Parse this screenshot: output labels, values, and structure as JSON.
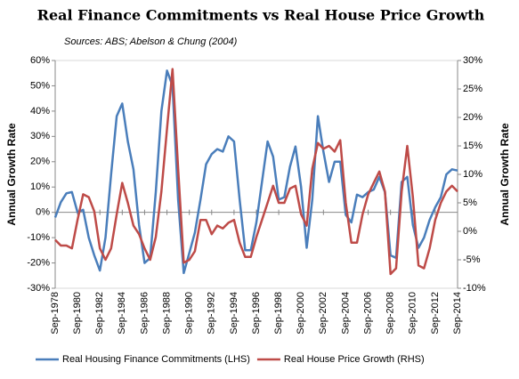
{
  "chart_data": {
    "type": "line",
    "title": "Real Finance Commitments vs Real House Price Growth",
    "subtitle": "Sources: ABS; Abelson & Chung (2004)",
    "y_label": "Annual Growth Rate",
    "y2_label": "Annual Growth Rate",
    "x": [
      1978.75,
      1979.25,
      1979.75,
      1980.25,
      1980.75,
      1981.25,
      1981.75,
      1982.25,
      1982.75,
      1983.25,
      1983.75,
      1984.25,
      1984.75,
      1985.25,
      1985.75,
      1986.25,
      1986.75,
      1987.25,
      1987.75,
      1988.25,
      1988.75,
      1989.25,
      1989.75,
      1990.25,
      1990.75,
      1991.25,
      1991.75,
      1992.25,
      1992.75,
      1993.25,
      1993.75,
      1994.25,
      1994.75,
      1995.25,
      1995.75,
      1996.25,
      1996.75,
      1997.25,
      1997.75,
      1998.25,
      1998.75,
      1999.25,
      1999.75,
      2000.25,
      2000.75,
      2001.25,
      2001.75,
      2002.25,
      2002.75,
      2003.25,
      2003.75,
      2004.25,
      2004.75,
      2005.25,
      2005.75,
      2006.25,
      2006.75,
      2007.25,
      2007.75,
      2008.25,
      2008.75,
      2009.25,
      2009.75,
      2010.25,
      2010.75,
      2011.25,
      2011.75,
      2012.25,
      2012.75,
      2013.25,
      2013.75,
      2014.25,
      2014.75
    ],
    "xlim": [
      1978.75,
      2014.75
    ],
    "xticks": [
      {
        "value": 1978.75,
        "label": "Sep-1978"
      },
      {
        "value": 1980.75,
        "label": "Sep-1980"
      },
      {
        "value": 1982.75,
        "label": "Sep-1982"
      },
      {
        "value": 1984.75,
        "label": "Sep-1984"
      },
      {
        "value": 1986.75,
        "label": "Sep-1986"
      },
      {
        "value": 1988.75,
        "label": "Sep-1988"
      },
      {
        "value": 1990.75,
        "label": "Sep-1990"
      },
      {
        "value": 1992.75,
        "label": "Sep-1992"
      },
      {
        "value": 1994.75,
        "label": "Sep-1994"
      },
      {
        "value": 1996.75,
        "label": "Sep-1996"
      },
      {
        "value": 1998.75,
        "label": "Sep-1998"
      },
      {
        "value": 2000.75,
        "label": "Sep-2000"
      },
      {
        "value": 2002.75,
        "label": "Sep-2002"
      },
      {
        "value": 2004.75,
        "label": "Sep-2004"
      },
      {
        "value": 2006.75,
        "label": "Sep-2006"
      },
      {
        "value": 2008.75,
        "label": "Sep-2008"
      },
      {
        "value": 2010.75,
        "label": "Sep-2010"
      },
      {
        "value": 2012.75,
        "label": "Sep-2012"
      },
      {
        "value": 2014.75,
        "label": "Sep-2014"
      }
    ],
    "ylim": [
      -30,
      60
    ],
    "yticks": [
      {
        "value": -30,
        "label": "-30%"
      },
      {
        "value": -20,
        "label": "-20%"
      },
      {
        "value": -10,
        "label": "-10%"
      },
      {
        "value": 0,
        "label": "0%"
      },
      {
        "value": 10,
        "label": "10%"
      },
      {
        "value": 20,
        "label": "20%"
      },
      {
        "value": 30,
        "label": "30%"
      },
      {
        "value": 40,
        "label": "40%"
      },
      {
        "value": 50,
        "label": "50%"
      },
      {
        "value": 60,
        "label": "60%"
      }
    ],
    "y2lim": [
      -10,
      30
    ],
    "y2ticks": [
      {
        "value": -10,
        "label": "-10%"
      },
      {
        "value": -5,
        "label": "-5%"
      },
      {
        "value": 0,
        "label": "0%"
      },
      {
        "value": 5,
        "label": "5%"
      },
      {
        "value": 10,
        "label": "10%"
      },
      {
        "value": 15,
        "label": "15%"
      },
      {
        "value": 20,
        "label": "20%"
      },
      {
        "value": 25,
        "label": "25%"
      },
      {
        "value": 30,
        "label": "30%"
      }
    ],
    "legend": "bottom",
    "series": [
      {
        "name": "Real Housing Finance Commitments (LHS)",
        "color": "#4a7ebb",
        "values": [
          -2,
          4,
          7.5,
          8,
          0,
          1,
          -10,
          -17,
          -23,
          -10,
          15,
          38,
          43,
          28,
          17,
          -5,
          -20,
          -18,
          8,
          40,
          56,
          50,
          5,
          -24,
          -16,
          -8,
          5,
          19,
          23,
          25,
          24,
          30,
          28,
          5,
          -15,
          -15,
          -4,
          12,
          28,
          22,
          5,
          6,
          18,
          26,
          10,
          -14,
          5,
          38,
          24,
          12,
          20,
          20,
          -1,
          -4,
          7,
          6,
          8,
          9,
          14,
          8,
          -17,
          -18,
          12,
          14,
          -5,
          -14,
          -10,
          -3,
          2,
          6,
          15,
          17,
          16.5
        ]
      },
      {
        "name": "Real House Price Growth (RHS)",
        "color": "#be4b48",
        "axis": "y2",
        "values": [
          -1.5,
          -2.5,
          -2.5,
          -3,
          2,
          6.5,
          6,
          3.5,
          -3,
          -5,
          -3,
          3,
          8.5,
          5,
          1,
          -0.5,
          -3,
          -5,
          -1,
          7,
          18,
          28.5,
          11,
          -5.5,
          -5,
          -3.5,
          2,
          2,
          -0.5,
          1,
          0.5,
          1.5,
          2,
          -2,
          -4.5,
          -4.5,
          -1,
          2,
          5,
          8,
          5,
          5,
          7.5,
          8,
          3,
          1,
          11,
          15.5,
          14.5,
          15,
          14,
          16,
          5,
          -2,
          -2,
          3,
          6.5,
          8.5,
          10.5,
          7,
          -7.5,
          -6.5,
          7,
          15,
          6,
          -6,
          -6.5,
          -3,
          2,
          5,
          7,
          8,
          7
        ]
      }
    ]
  }
}
